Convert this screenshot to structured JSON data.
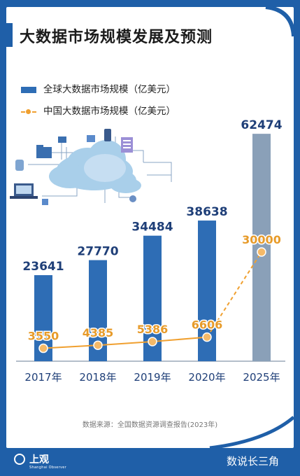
{
  "title": "大数据市场规模发展及预测",
  "legend": {
    "global": "全球大数据市场规模（亿美元）",
    "china": "中国大数据市场规模（亿美元）"
  },
  "source": "数据来源：全国数据资源调查报告(2023年)",
  "footer": {
    "logo_text": "上观",
    "logo_sub": "Shanghai Observer",
    "brand": "数说长三角"
  },
  "colors": {
    "global_bar": "#2e6db5",
    "forecast_bar": "#8aa0b8",
    "china_line": "#f0a030",
    "frame": "#1f5fa8"
  },
  "chart_data": {
    "type": "bar",
    "categories": [
      "2017年",
      "2018年",
      "2019年",
      "2020年",
      "2025年"
    ],
    "series": [
      {
        "name": "全球大数据市场规模（亿美元）",
        "type": "bar",
        "values": [
          23641,
          27770,
          34484,
          38638,
          62474
        ]
      },
      {
        "name": "中国大数据市场规模（亿美元）",
        "type": "line",
        "values": [
          3550,
          4385,
          5386,
          6606,
          30000
        ]
      }
    ],
    "ylim": [
      0,
      65000
    ],
    "grid": false,
    "legend_position": "top-left"
  }
}
